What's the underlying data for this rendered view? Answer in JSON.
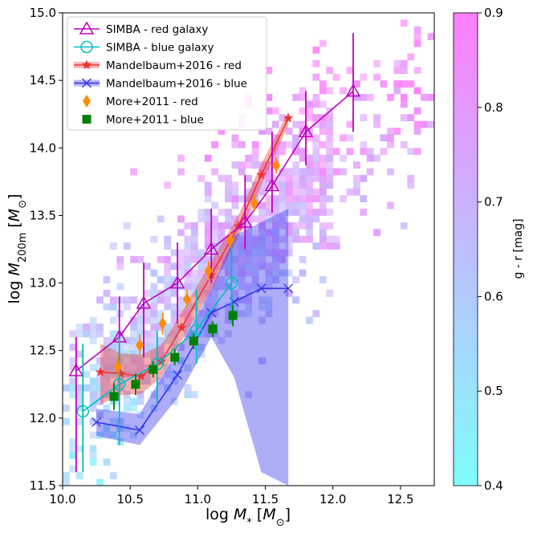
{
  "chart_data": {
    "type": "scatter",
    "xlabel": "log M_* [M_⊙]",
    "xlabel_parts": {
      "prefix": "log ",
      "var": "M",
      "sub": "*",
      "unit_open": " [",
      "unit_var": "M",
      "unit_sub": "⊙",
      "unit_close": "]"
    },
    "ylabel": "log M_200m [M_⊙]",
    "ylabel_parts": {
      "prefix": "log ",
      "var": "M",
      "sub": "200m",
      "unit_open": " [",
      "unit_var": "M",
      "unit_sub": "⊙",
      "unit_close": "]"
    },
    "xlim": [
      10.0,
      12.75
    ],
    "ylim": [
      11.5,
      15.0
    ],
    "xticks": [
      10.0,
      10.5,
      11.0,
      11.5,
      12.0,
      12.5
    ],
    "xtick_labels": [
      "10.0",
      "10.5",
      "11.0",
      "11.5",
      "12.0",
      "12.5"
    ],
    "yticks": [
      11.5,
      12.0,
      12.5,
      13.0,
      13.5,
      14.0,
      14.5,
      15.0
    ],
    "ytick_labels": [
      "11.5",
      "12.0",
      "12.5",
      "13.0",
      "13.5",
      "14.0",
      "14.5",
      "15.0"
    ],
    "legend_position": "top-left",
    "colorbar": {
      "label": "g - r  [mag]",
      "range": [
        0.4,
        0.9
      ],
      "ticks": [
        0.4,
        0.5,
        0.6,
        0.7,
        0.8,
        0.9
      ],
      "tick_labels": [
        "0.4",
        "0.5",
        "0.6",
        "0.7",
        "0.8",
        "0.9"
      ],
      "color_low": "#7ffdfd",
      "color_high": "#fd7ffd"
    },
    "series": [
      {
        "name": "SIMBA - red galaxy",
        "color": "#bf00bf",
        "marker": "triangle-open",
        "x": [
          10.1,
          10.42,
          10.6,
          10.85,
          11.1,
          11.35,
          11.55,
          11.8,
          12.15
        ],
        "y": [
          12.35,
          12.6,
          12.85,
          13.0,
          13.25,
          13.45,
          13.72,
          14.12,
          14.42
        ],
        "yerr_low": [
          0.75,
          0.5,
          0.4,
          0.3,
          0.25,
          0.2,
          0.2,
          0.25,
          0.3
        ],
        "yerr_high": [
          0.25,
          0.3,
          0.3,
          0.3,
          0.3,
          0.35,
          0.4,
          0.3,
          0.43
        ]
      },
      {
        "name": "SIMBA - blue galaxy",
        "color": "#00bfbf",
        "marker": "circle-open",
        "x": [
          10.15,
          10.42,
          10.7,
          10.99,
          11.25
        ],
        "y": [
          12.05,
          12.25,
          12.4,
          12.65,
          13.0
        ],
        "yerr_low": [
          0.45,
          0.45,
          0.3,
          0.25,
          0.3
        ],
        "yerr_high": [
          0.5,
          0.35,
          0.25,
          0.3,
          0.3
        ]
      },
      {
        "name": "Mandelbaum+2016 - red",
        "color": "#ee3333",
        "marker": "star",
        "x": [
          10.28,
          10.43,
          10.58,
          10.73,
          10.88,
          11.1,
          11.3,
          11.47,
          11.67
        ],
        "y": [
          12.34,
          12.33,
          12.31,
          12.42,
          12.67,
          13.06,
          13.42,
          13.8,
          14.22
        ],
        "band_low": [
          12.1,
          12.17,
          12.18,
          12.3,
          12.57,
          12.95,
          13.34,
          13.72,
          14.17
        ],
        "band_high": [
          12.55,
          12.48,
          12.47,
          12.54,
          12.78,
          13.16,
          13.5,
          13.88,
          14.27
        ]
      },
      {
        "name": "Mandelbaum+2016 - blue",
        "color": "#3333ee",
        "marker": "x",
        "x": [
          10.25,
          10.57,
          10.85,
          11.1,
          11.27,
          11.47,
          11.67
        ],
        "y": [
          11.97,
          11.91,
          12.32,
          12.78,
          12.86,
          12.96,
          12.96
        ],
        "band_low": [
          11.87,
          11.8,
          12.15,
          12.6,
          12.3,
          11.6,
          11.5
        ],
        "band_high": [
          12.07,
          12.03,
          12.5,
          12.95,
          13.35,
          13.45,
          13.55
        ]
      },
      {
        "name": "More+2011 - red",
        "color": "#ff8c00",
        "marker": "diamond",
        "x": [
          10.41,
          10.57,
          10.74,
          10.92,
          11.08,
          11.24,
          11.42,
          11.58
        ],
        "y": [
          12.38,
          12.54,
          12.7,
          12.88,
          13.09,
          13.32,
          13.59,
          13.87
        ],
        "yerr": [
          0.08,
          0.08,
          0.08,
          0.07,
          0.07,
          0.06,
          0.06,
          0.06
        ]
      },
      {
        "name": "More+2011 - blue",
        "color": "#008000",
        "marker": "square",
        "x": [
          10.38,
          10.54,
          10.67,
          10.83,
          10.97,
          11.11,
          11.26
        ],
        "y": [
          12.16,
          12.25,
          12.36,
          12.45,
          12.57,
          12.66,
          12.76
        ],
        "yerr": [
          0.1,
          0.08,
          0.06,
          0.06,
          0.06,
          0.06,
          0.08
        ]
      }
    ]
  }
}
